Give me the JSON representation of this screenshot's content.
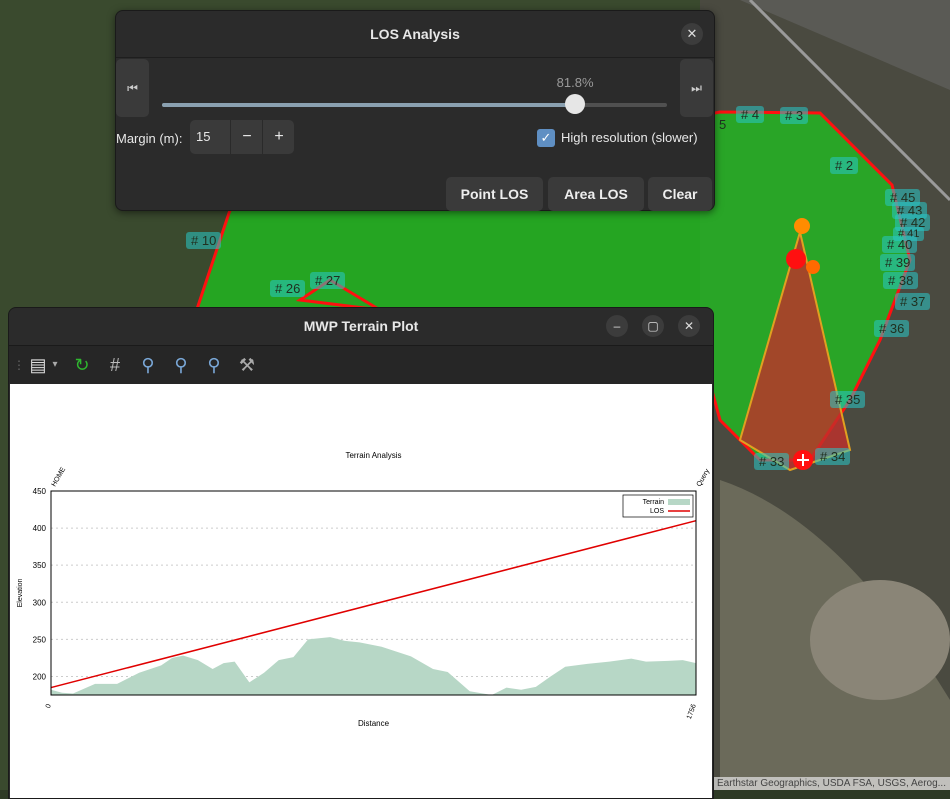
{
  "map": {
    "waypoints": [
      "# 4",
      "# 3",
      "5",
      "# 2",
      "# 45",
      "# 43",
      "# 42",
      "# 41",
      "# 40",
      "# 39",
      "# 38",
      "# 37",
      "# 36",
      "# 35",
      "# 34",
      "# 33",
      "# 10",
      "# 26",
      "# 27"
    ],
    "credit": "...an Earthstar Geographics, USDA FSA, USGS, Aerog..."
  },
  "los": {
    "title": "LOS Analysis",
    "close": "✕",
    "prev_icon": "⏮",
    "next_icon": "⏭",
    "progress_label": "81.8%",
    "progress": 0.818,
    "margin_label": "Margin (m):",
    "margin_value": "15",
    "minus": "−",
    "plus": "+",
    "hires_label": "High resolution (slower)",
    "hires_checked": true,
    "buttons": {
      "point": "Point LOS",
      "area": "Area LOS",
      "clear": "Clear"
    }
  },
  "terrain": {
    "title": "MWP Terrain Plot",
    "min": "–",
    "max": "▢",
    "close": "✕"
  },
  "chart_data": {
    "type": "area",
    "title": "Terrain Analysis",
    "xlabel": "Distance",
    "ylabel": "Elevation",
    "xlim": [
      0,
      1756
    ],
    "ylim": [
      175,
      450
    ],
    "x_ticks": [
      "0",
      "1756"
    ],
    "y_ticks": [
      "200",
      "250",
      "300",
      "350",
      "400",
      "450"
    ],
    "top_labels": [
      "HOME",
      "Query"
    ],
    "legend": "top-right",
    "grid": true,
    "series": [
      {
        "name": "Terrain",
        "color": "#b7d7c6",
        "x": [
          0,
          30,
          60,
          120,
          180,
          240,
          300,
          330,
          360,
          400,
          440,
          470,
          500,
          540,
          580,
          620,
          660,
          700,
          760,
          800,
          840,
          900,
          980,
          1040,
          1080,
          1140,
          1200,
          1240,
          1280,
          1320,
          1360,
          1400,
          1460,
          1520,
          1580,
          1620,
          1680,
          1720,
          1756
        ],
        "y": [
          182,
          178,
          177,
          190,
          190,
          205,
          215,
          225,
          228,
          222,
          210,
          218,
          220,
          192,
          205,
          222,
          226,
          250,
          253,
          248,
          246,
          240,
          227,
          210,
          206,
          180,
          175,
          185,
          182,
          186,
          200,
          213,
          217,
          220,
          224,
          220,
          221,
          222,
          218
        ]
      },
      {
        "name": "LOS",
        "color": "#e00000",
        "x": [
          0,
          1756
        ],
        "y": [
          185,
          410
        ]
      }
    ]
  }
}
